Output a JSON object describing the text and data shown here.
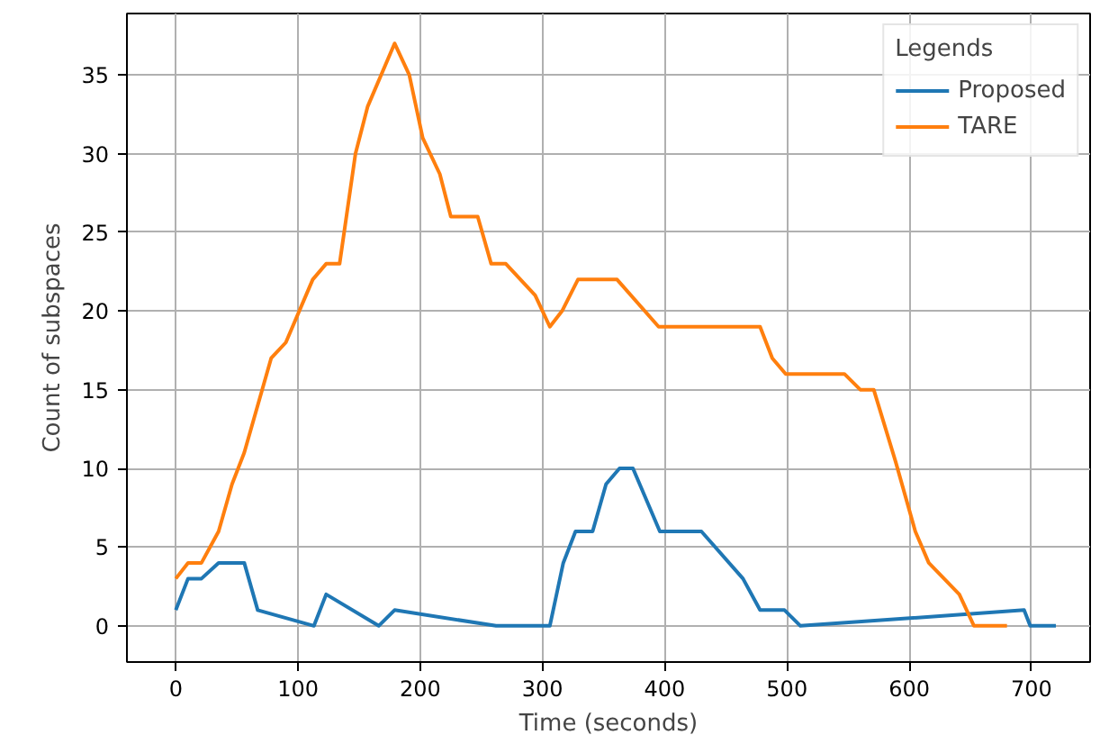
{
  "chart_data": {
    "type": "line",
    "xlabel": "Time (seconds)",
    "ylabel": "Count of subspaces",
    "legend_title": "Legends",
    "legend": "top right",
    "grid": true,
    "xlim": [
      -40,
      748
    ],
    "ylim": [
      -2.3,
      38.9
    ],
    "xticks": [
      0,
      100,
      200,
      300,
      400,
      500,
      600,
      700
    ],
    "yticks": [
      0,
      5,
      10,
      15,
      20,
      25,
      30,
      35
    ],
    "series": [
      {
        "name": "Proposed",
        "color": "#1f77b4",
        "x": [
          0,
          10,
          21,
          35,
          56,
          67,
          113,
          123,
          166,
          179,
          262,
          306,
          317,
          327,
          341,
          352,
          363,
          374,
          396,
          430,
          464,
          478,
          498,
          511,
          694,
          699,
          720
        ],
        "values": [
          1,
          3,
          3,
          4,
          4,
          1,
          0,
          2,
          0,
          1,
          0,
          0,
          4,
          6,
          6,
          9,
          10,
          10,
          6,
          6,
          3,
          1,
          1,
          0,
          1,
          0,
          0
        ]
      },
      {
        "name": "TARE",
        "color": "#ff7f0e",
        "x": [
          0,
          10,
          21,
          35,
          46,
          56,
          78,
          90,
          112,
          123,
          134,
          147,
          157,
          179,
          191,
          202,
          216,
          225,
          247,
          258,
          270,
          294,
          306,
          316,
          329,
          361,
          395,
          478,
          488,
          499,
          547,
          560,
          571,
          589,
          605,
          616,
          641,
          653,
          680
        ],
        "values": [
          3,
          4,
          4,
          6,
          9,
          11,
          17,
          18,
          22,
          23,
          23,
          30,
          33,
          37,
          35,
          31,
          28.7,
          26,
          26,
          23,
          23,
          21,
          19,
          20,
          22,
          22,
          19,
          19,
          17,
          16,
          16,
          15,
          15,
          10.4,
          6,
          4,
          2,
          0,
          0
        ]
      }
    ]
  }
}
